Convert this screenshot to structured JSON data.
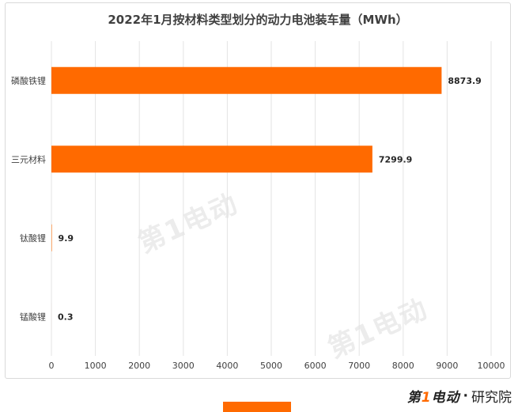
{
  "chart_data": {
    "type": "bar",
    "orientation": "horizontal",
    "title": "2022年1月按材料类型划分的动力电池装车量（MWh）",
    "categories": [
      "磷酸铁锂",
      "三元材料",
      "钛酸锂",
      "锰酸锂"
    ],
    "values": [
      8873.9,
      7299.9,
      9.9,
      0.3
    ],
    "value_labels": [
      "8873.9",
      "7299.9",
      "9.9",
      "0.3"
    ],
    "x_ticks": [
      "0",
      "1000",
      "2000",
      "3000",
      "4000",
      "5000",
      "6000",
      "7000",
      "8000",
      "9000",
      "10000"
    ],
    "xlim": [
      0,
      10000
    ],
    "grid": "vertical",
    "bar_color": "#ff6a00",
    "xlabel": "",
    "ylabel": ""
  },
  "watermarks": [
    "第1电动",
    "第1电动"
  ],
  "footer": {
    "brand_left": "第",
    "brand_one": "1",
    "brand_right": "电动",
    "dot": "·",
    "suffix": "研究院"
  },
  "colors": {
    "bar": "#ff6a00",
    "accent": "#ff6a00"
  }
}
